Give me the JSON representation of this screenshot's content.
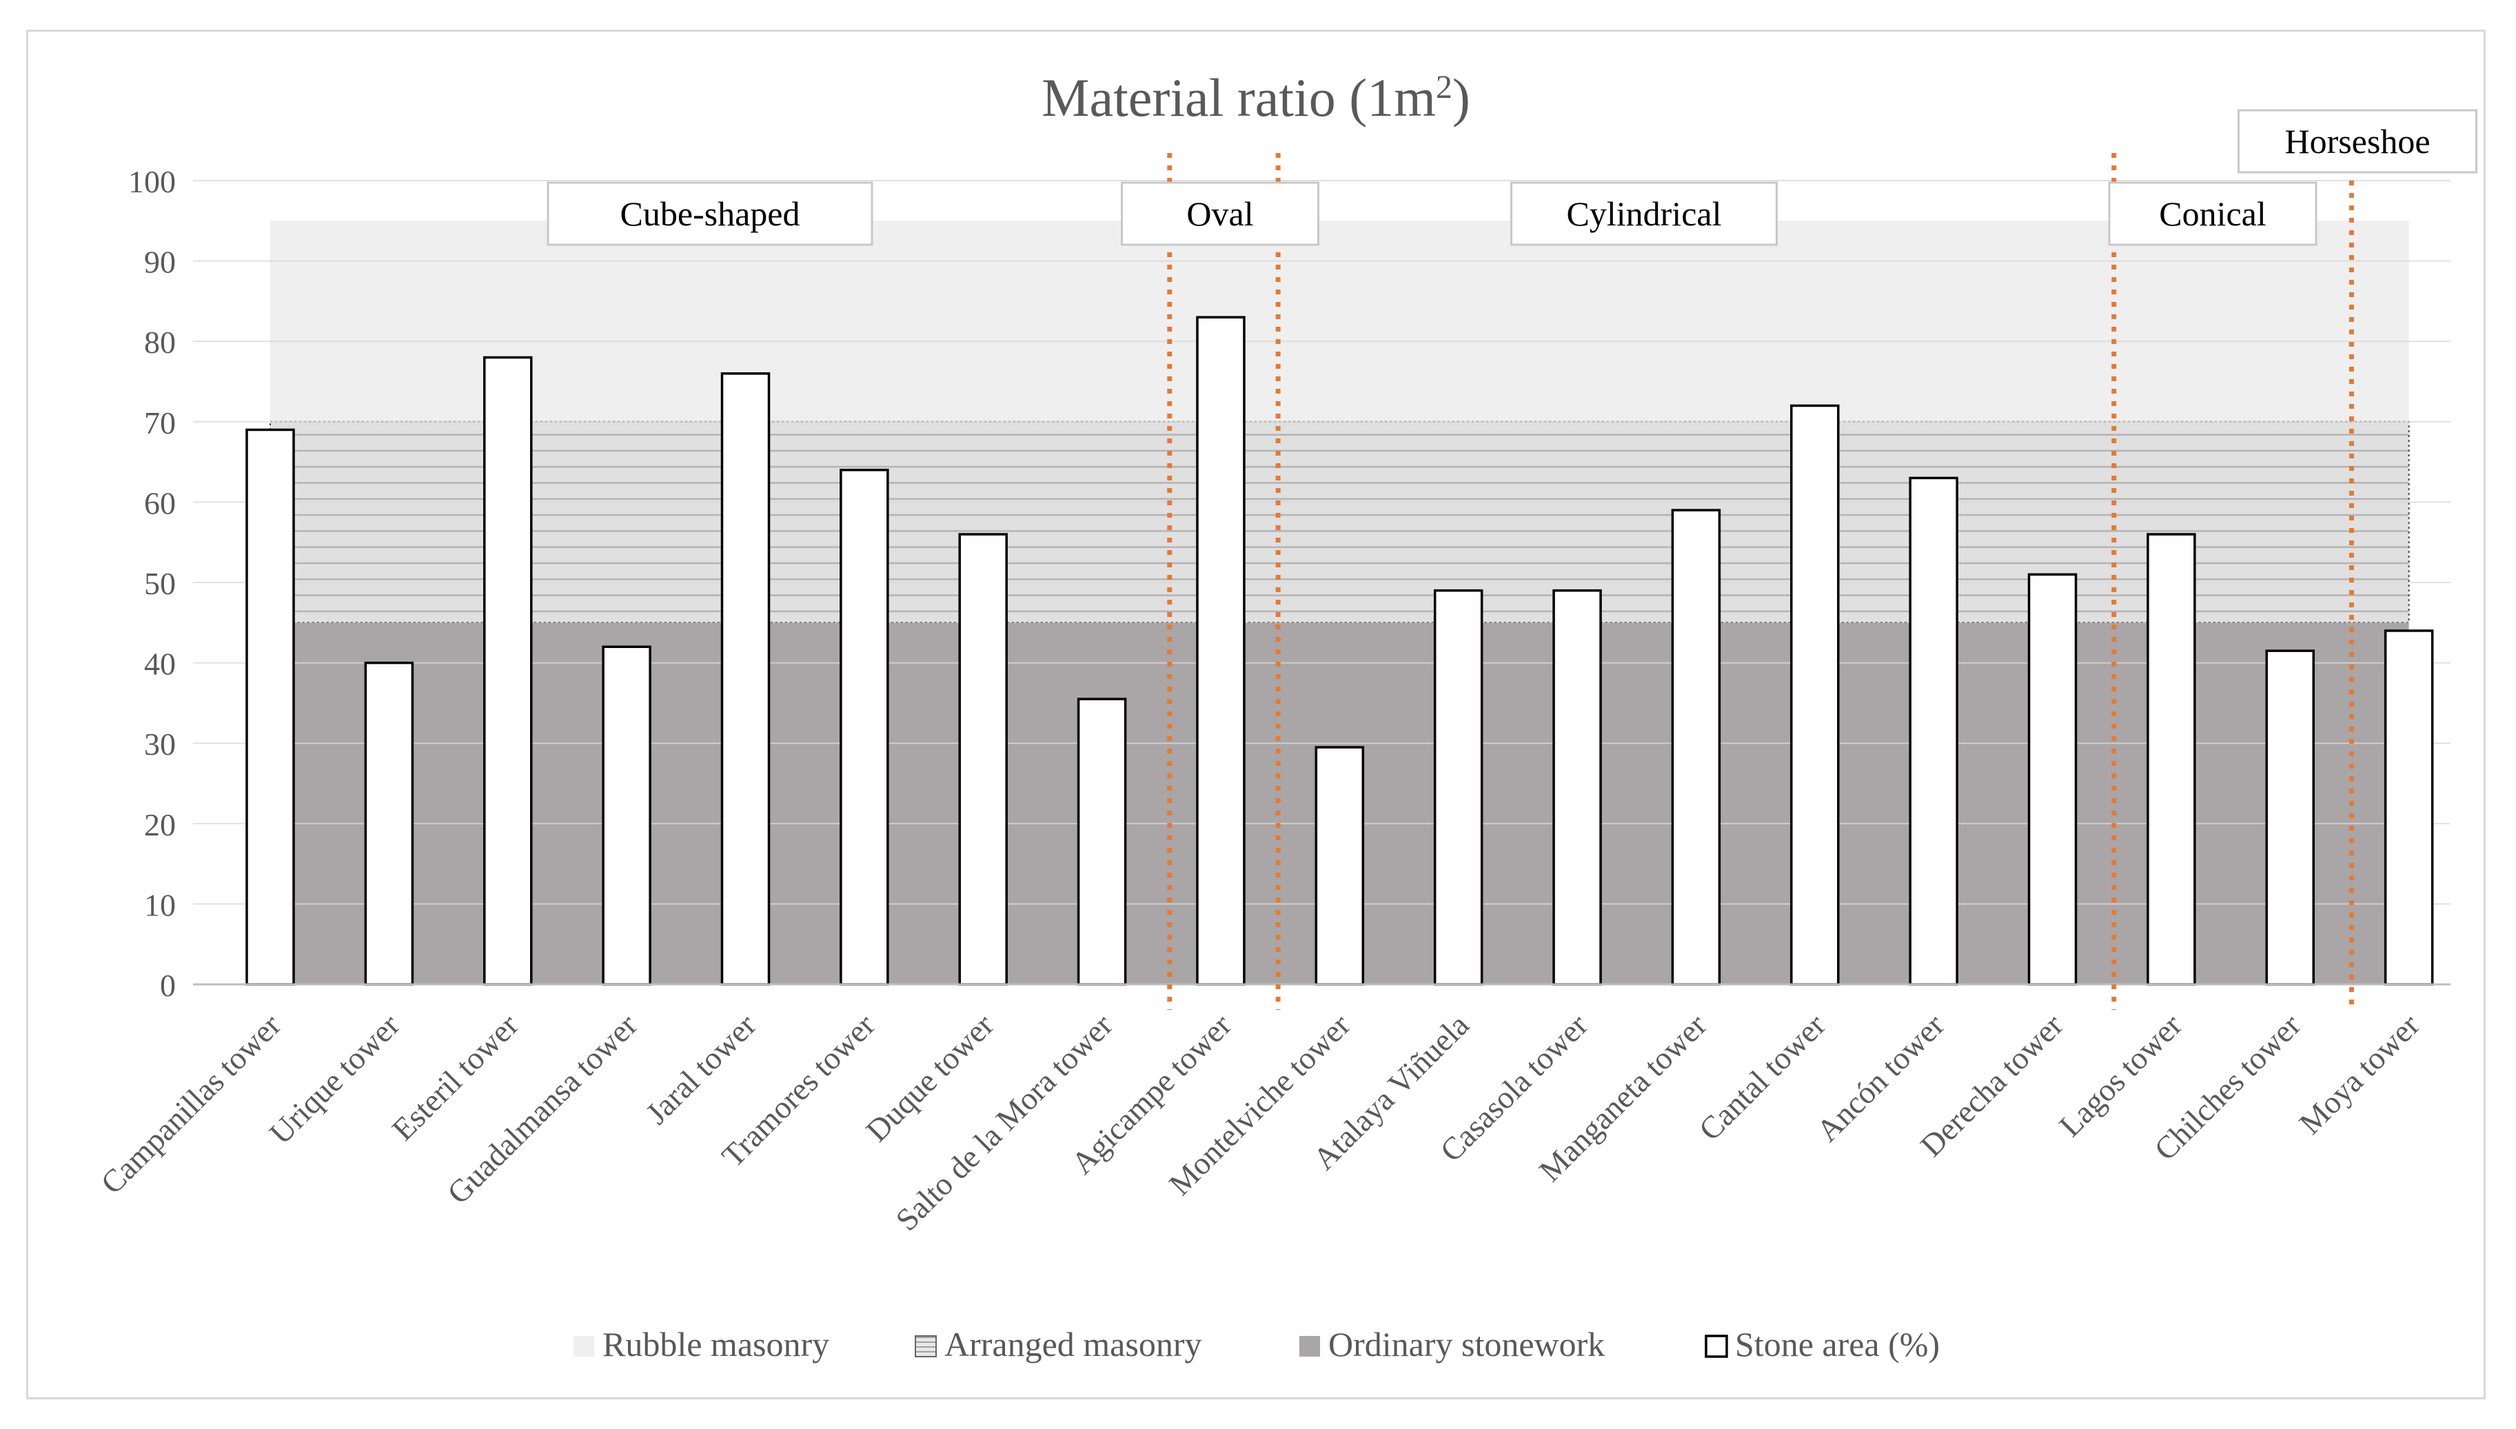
{
  "chart_data": {
    "type": "bar",
    "title": "Material ratio (1m²)",
    "xlabel": "",
    "ylabel": "",
    "ylim": [
      0,
      100
    ],
    "yticks": [
      0,
      10,
      20,
      30,
      40,
      50,
      60,
      70,
      80,
      90,
      100
    ],
    "grid": true,
    "categories": [
      "Campanillas tower",
      "Urique tower",
      "Esteril tower",
      "Guadalmansa tower",
      "Jaral tower",
      "Tramores tower",
      "Duque tower",
      "Salto de la Mora tower",
      "Agicampe tower",
      "Montelviche tower",
      "Atalaya Viñuela",
      "Casasola tower",
      "Manganeta tower",
      "Cantal tower",
      "Ancón tower",
      "Derecha tower",
      "Lagos tower",
      "Chilches tower",
      "Moya tower"
    ],
    "series": [
      {
        "name": "Stone area (%)",
        "values": [
          69,
          40,
          78,
          42,
          76,
          64,
          56,
          35.5,
          83,
          29.5,
          49,
          49,
          59,
          72,
          63,
          51,
          56,
          41.5,
          44
        ]
      }
    ],
    "bands": [
      {
        "name": "Rubble masonry",
        "from": 70,
        "to": 95,
        "color": "#efefef"
      },
      {
        "name": "Arranged masonry",
        "from": 45,
        "to": 70,
        "color": "#dcdcdc"
      },
      {
        "name": "Ordinary stonework",
        "from": 0,
        "to": 45,
        "color": "#aaa5a6"
      }
    ],
    "shape_groups": [
      {
        "label": "Cube-shaped"
      },
      {
        "label": "Oval"
      },
      {
        "label": "Cylindrical"
      },
      {
        "label": "Conical"
      },
      {
        "label": "Horseshoe"
      }
    ],
    "divider_color": "#e07b39",
    "legend": {
      "position": "bottom",
      "items": [
        "Rubble masonry",
        "Arranged masonry",
        "Ordinary stonework",
        "Stone area (%)"
      ]
    }
  }
}
